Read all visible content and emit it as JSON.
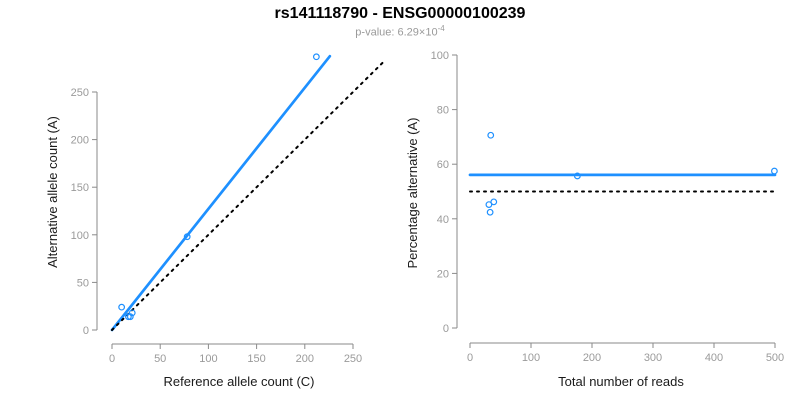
{
  "header": {
    "title": "rs141118790 - ENSG00000100239",
    "subtitle_prefix": "p-value: 6.29×10",
    "subtitle_exponent": "-4"
  },
  "colors": {
    "accent": "#1E90FF",
    "identity": "#000000",
    "axis": "#8a8a8a",
    "tick_label": "#9a9a9a",
    "axis_label": "#1a1a1a"
  },
  "chart_data": [
    {
      "type": "scatter",
      "panel": "left",
      "xlabel": "Reference allele count (C)",
      "ylabel": "Alternative allele count (A)",
      "xticks": [
        0,
        50,
        100,
        150,
        200,
        250
      ],
      "yticks": [
        0,
        50,
        100,
        150,
        200,
        250
      ],
      "xlim": [
        0,
        290
      ],
      "ylim": [
        0,
        295
      ],
      "grid": false,
      "points": {
        "x": [
          10,
          21,
          17,
          19,
          78,
          212
        ],
        "y": [
          24,
          18,
          14,
          14,
          98,
          287
        ]
      },
      "lines": [
        {
          "name": "fitted-line",
          "x1": 0,
          "y1": 0,
          "x2": 226,
          "y2": 287.6,
          "style": "solid",
          "color_key": "accent"
        },
        {
          "name": "identity-line",
          "x1": 0,
          "y1": 0,
          "x2": 281,
          "y2": 281,
          "style": "dotted",
          "color_key": "identity"
        }
      ]
    },
    {
      "type": "scatter",
      "panel": "right",
      "xlabel": "Total number of reads",
      "ylabel": "Percentage alternative (A)",
      "xticks": [
        0,
        100,
        200,
        300,
        400,
        500
      ],
      "yticks": [
        0,
        20,
        40,
        60,
        80,
        100
      ],
      "xlim": [
        0,
        500
      ],
      "ylim": [
        0,
        100
      ],
      "grid": false,
      "points": {
        "x": [
          34,
          39,
          31,
          33,
          176,
          499
        ],
        "y": [
          70.6,
          46.2,
          45.2,
          42.4,
          55.7,
          57.5
        ]
      },
      "lines": [
        {
          "name": "fitted-line",
          "x1": 0,
          "y1": 56.1,
          "x2": 500,
          "y2": 56.1,
          "style": "solid",
          "color_key": "accent"
        },
        {
          "name": "null-line",
          "x1": 0,
          "y1": 50,
          "x2": 500,
          "y2": 50,
          "style": "dotted",
          "color_key": "identity"
        }
      ]
    }
  ]
}
